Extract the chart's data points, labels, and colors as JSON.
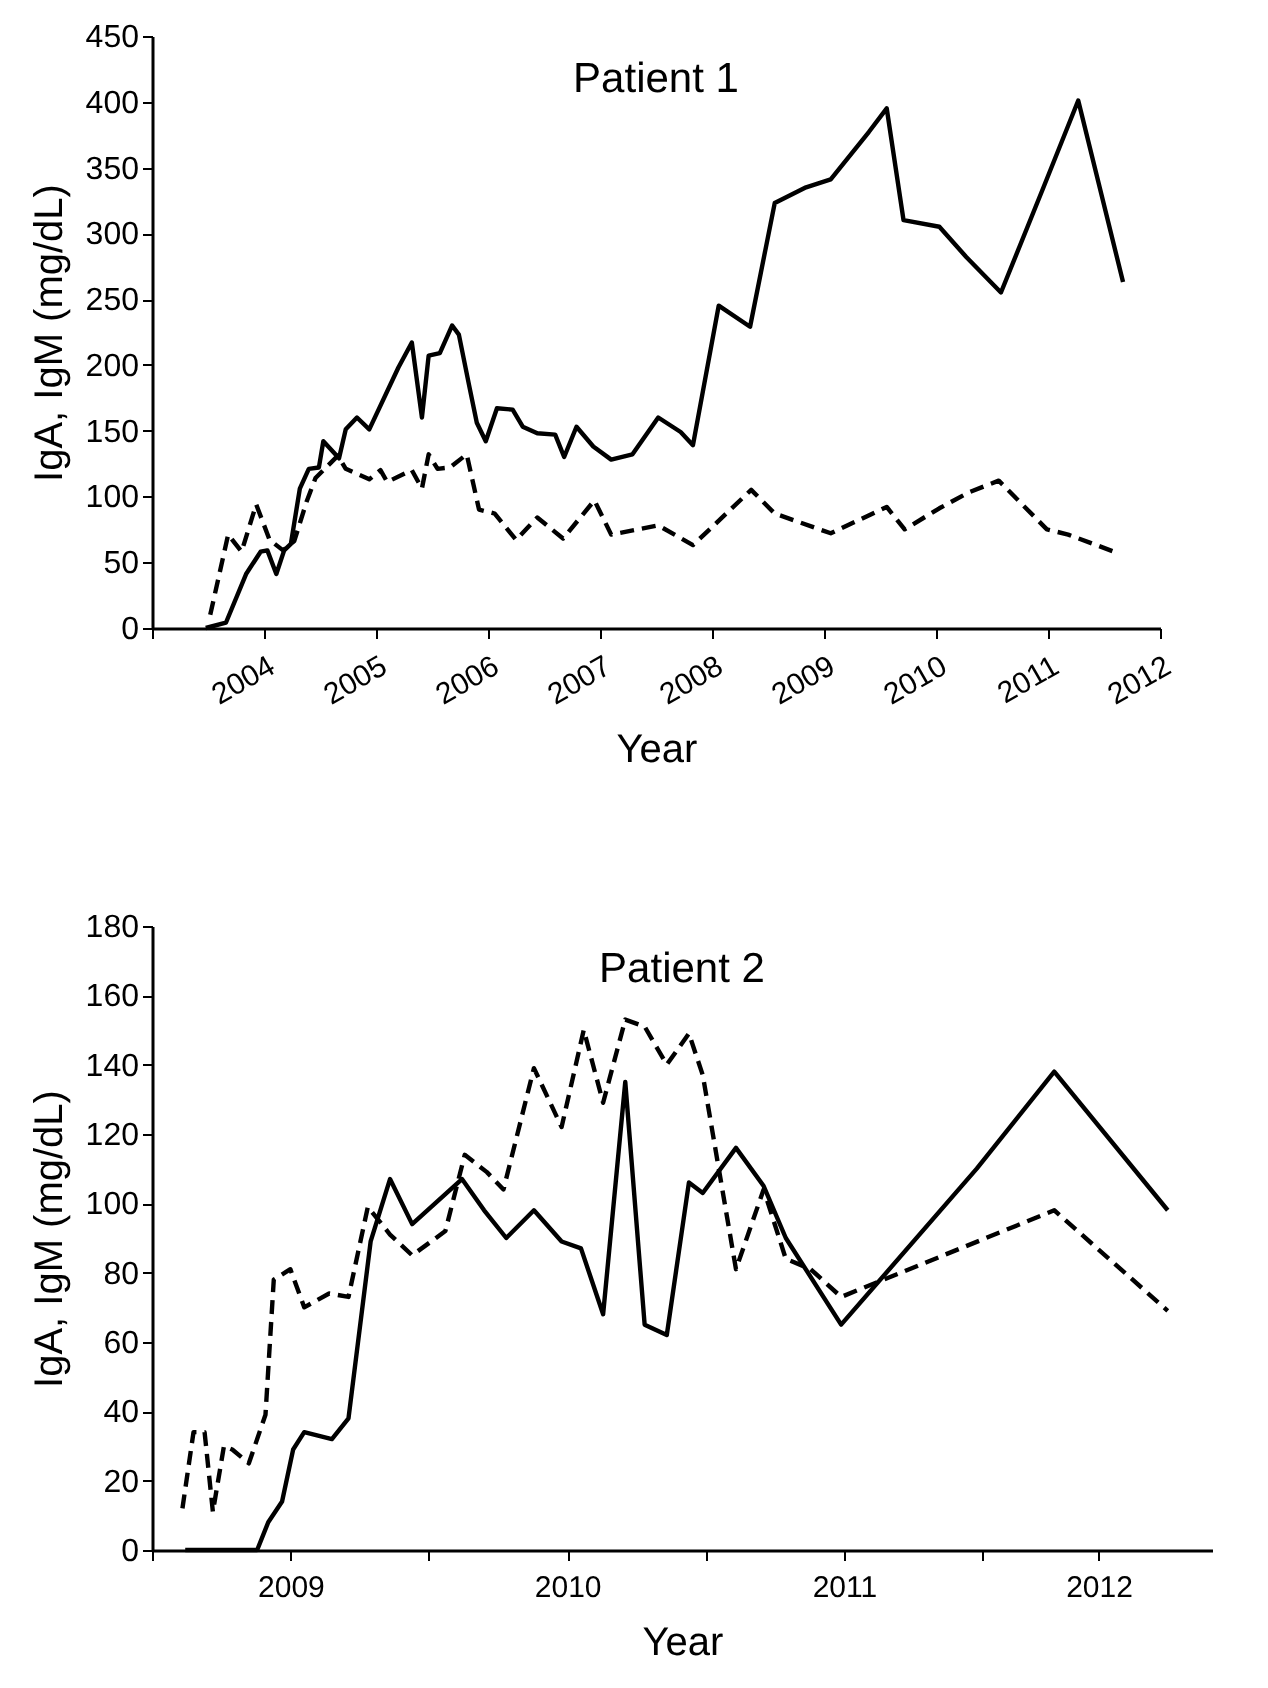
{
  "chart_data": [
    {
      "type": "line",
      "title": "Patient 1",
      "xlabel": "Year",
      "ylabel": "IgA, IgM (mg/dL)",
      "xlim": [
        2003,
        2012
      ],
      "xticks": [
        {
          "value": 2003,
          "label": null
        },
        2004,
        2005,
        2006,
        2007,
        2008,
        2009,
        2010,
        2011,
        2012
      ],
      "ylim": [
        0,
        450
      ],
      "yticks": [
        0,
        50,
        100,
        150,
        200,
        250,
        300,
        350,
        400,
        450
      ],
      "series": [
        {
          "color": "#000000",
          "line_style": "solid",
          "x": [
            2003.48,
            2003.66,
            2003.84,
            2003.97,
            2004.03,
            2004.11,
            2004.18,
            2004.24,
            2004.32,
            2004.4,
            2004.49,
            2004.53,
            2004.67,
            2004.73,
            2004.83,
            2004.94,
            2005.2,
            2005.32,
            2005.41,
            2005.47,
            2005.57,
            2005.68,
            2005.74,
            2005.83,
            2005.9,
            2005.98,
            2006.08,
            2006.22,
            2006.31,
            2006.44,
            2006.6,
            2006.68,
            2006.79,
            2006.94,
            2007.1,
            2007.29,
            2007.52,
            2007.72,
            2007.83,
            2008.06,
            2008.34,
            2008.56,
            2008.84,
            2009.06,
            2009.4,
            2009.56,
            2009.71,
            2010.03,
            2010.27,
            2010.58,
            2010.96,
            2011.27,
            2011.67
          ],
          "values": [
            0,
            4,
            41,
            58,
            59,
            41,
            59,
            64,
            106,
            121,
            122,
            142,
            129,
            151,
            160,
            151,
            198,
            217,
            160,
            207,
            209,
            230,
            223,
            185,
            156,
            142,
            167,
            166,
            153,
            148,
            147,
            130,
            153,
            138,
            128,
            132,
            160,
            149,
            139,
            245,
            229,
            323,
            335,
            341,
            377,
            395,
            310,
            305,
            282,
            255,
            335,
            401,
            263
          ]
        },
        {
          "color": "#000000",
          "line_style": "dashed",
          "x": [
            2003.52,
            2003.68,
            2003.8,
            2003.93,
            2004.05,
            2004.17,
            2004.27,
            2004.38,
            2004.46,
            2004.66,
            2004.73,
            2004.94,
            2005.04,
            2005.1,
            2005.32,
            2005.41,
            2005.47,
            2005.55,
            2005.66,
            2005.81,
            2005.92,
            2006.06,
            2006.25,
            2006.44,
            2006.67,
            2006.95,
            2007.1,
            2007.52,
            2007.83,
            2008.35,
            2008.56,
            2009.06,
            2009.56,
            2009.72,
            2010.03,
            2010.29,
            2010.56,
            2010.99,
            2011.18,
            2011.59
          ],
          "values": [
            10,
            71,
            58,
            94,
            67,
            59,
            66,
            96,
            114,
            131,
            121,
            113,
            120,
            111,
            120,
            106,
            132,
            121,
            122,
            132,
            90,
            87,
            67,
            84,
            68,
            97,
            71,
            78,
            63,
            105,
            87,
            72,
            92,
            75,
            91,
            103,
            112,
            75,
            71,
            58
          ]
        }
      ]
    },
    {
      "type": "line",
      "title": "Patient 2",
      "xlabel": "Year",
      "ylabel": "IgA, IgM (mg/dL)",
      "xlim": [
        2009,
        2012.83
      ],
      "xticks": [
        {
          "value": 2009,
          "label": null
        },
        {
          "value": 2009.5,
          "label": "2009"
        },
        {
          "value": 2010,
          "label": null
        },
        {
          "value": 2010.5,
          "label": "2010"
        },
        {
          "value": 2011,
          "label": null
        },
        {
          "value": 2011.5,
          "label": "2011"
        },
        {
          "value": 2012,
          "label": null
        },
        {
          "value": 2012.42,
          "label": "2012"
        }
      ],
      "ylim": [
        0,
        180
      ],
      "yticks": [
        0,
        20,
        40,
        60,
        80,
        100,
        120,
        140,
        160,
        180
      ],
      "series": [
        {
          "color": "#000000",
          "line_style": "solid",
          "x": [
            2009.12,
            2009.38,
            2009.42,
            2009.47,
            2009.51,
            2009.55,
            2009.65,
            2009.71,
            2009.79,
            2009.86,
            2009.94,
            2010.12,
            2010.2,
            2010.28,
            2010.38,
            2010.48,
            2010.55,
            2010.63,
            2010.71,
            2010.78,
            2010.86,
            2010.94,
            2010.99,
            2011.11,
            2011.21,
            2011.29,
            2011.49,
            2011.98,
            2012.26,
            2012.67
          ],
          "values": [
            0,
            0,
            8,
            14,
            29,
            34,
            32,
            38,
            89,
            107,
            94,
            107,
            98,
            90,
            98,
            89,
            87,
            68,
            135,
            65,
            62,
            106,
            103,
            116,
            105,
            90,
            65,
            110,
            138,
            98
          ]
        },
        {
          "color": "#000000",
          "line_style": "dashed",
          "x": [
            2009.11,
            2009.15,
            2009.19,
            2009.22,
            2009.26,
            2009.29,
            2009.35,
            2009.41,
            2009.44,
            2009.5,
            2009.55,
            2009.64,
            2009.71,
            2009.78,
            2009.86,
            2009.94,
            2010.06,
            2010.13,
            2010.21,
            2010.27,
            2010.38,
            2010.48,
            2010.56,
            2010.63,
            2010.71,
            2010.78,
            2010.86,
            2010.94,
            2010.99,
            2011.11,
            2011.21,
            2011.29,
            2011.38,
            2011.49,
            2012.26,
            2012.67
          ],
          "values": [
            12,
            34,
            34,
            11,
            30,
            29,
            25,
            39,
            78,
            81,
            70,
            74,
            73,
            99,
            91,
            85,
            92,
            114,
            109,
            104,
            139,
            122,
            150,
            129,
            153,
            151,
            140,
            149,
            137,
            81,
            104,
            84,
            81,
            73,
            98,
            69
          ]
        }
      ]
    }
  ]
}
